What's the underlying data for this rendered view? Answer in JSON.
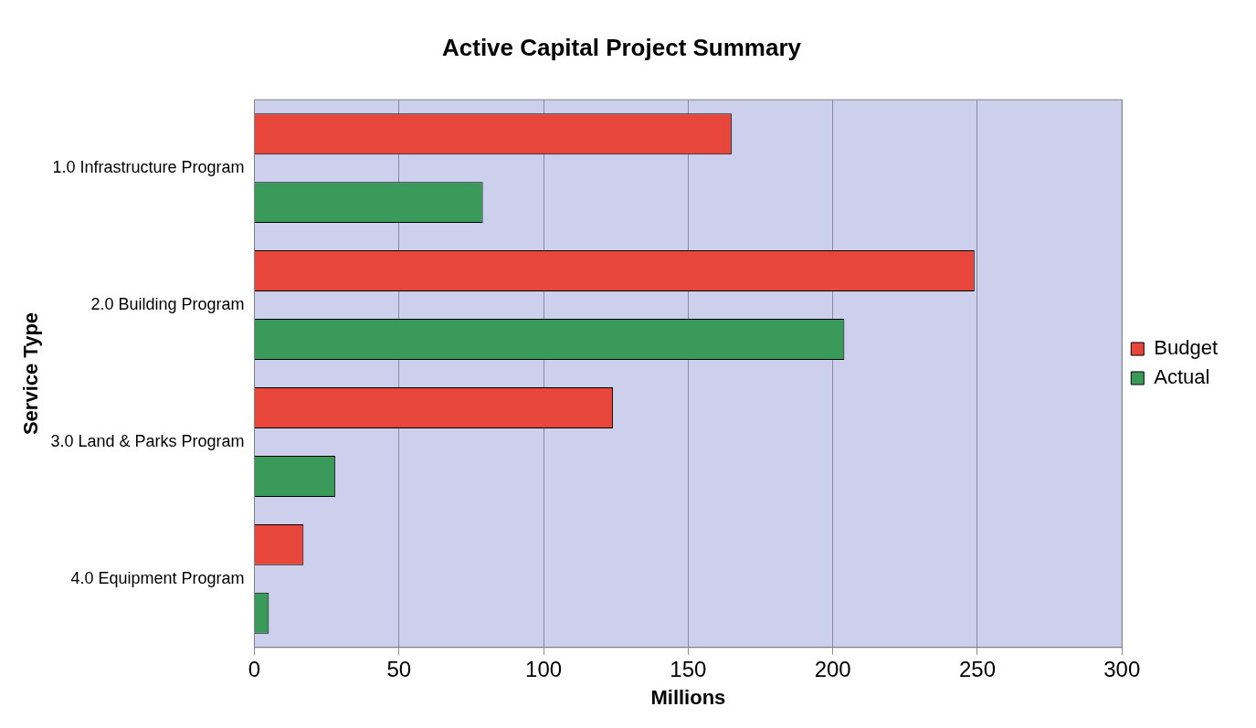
{
  "chart_data": {
    "type": "bar",
    "orientation": "horizontal",
    "title": "Active Capital Project Summary",
    "xlabel": "Millions",
    "ylabel": "Service Type",
    "categories": [
      "1.0 Infrastructure Program",
      "2.0 Building Program",
      "3.0 Land & Parks Program",
      "4.0 Equipment Program"
    ],
    "series": [
      {
        "name": "Budget",
        "color": "#e8463a",
        "values": [
          165,
          249,
          124,
          17
        ]
      },
      {
        "name": "Actual",
        "color": "#3a9a5a",
        "values": [
          79,
          204,
          28,
          5
        ]
      }
    ],
    "xlim": [
      0,
      300
    ],
    "xticks": [
      0,
      50,
      100,
      150,
      200,
      250,
      300
    ],
    "grid": "x",
    "legend": "right"
  }
}
